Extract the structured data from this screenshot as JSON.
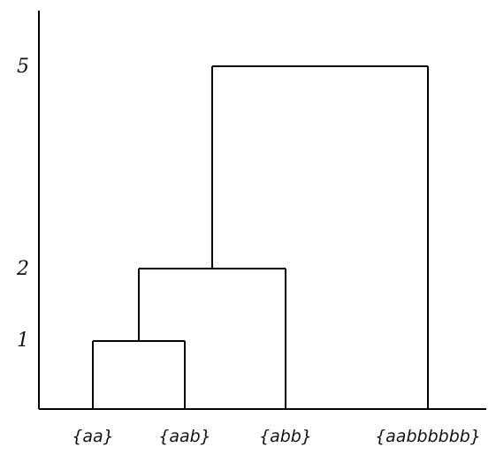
{
  "dendrogram": {
    "axis_ticks": [
      {
        "value": 5,
        "label": "5"
      },
      {
        "value": 2,
        "label": "2"
      },
      {
        "value": 1,
        "label": "1"
      }
    ],
    "leaves": [
      {
        "id": "aa",
        "label": "{aa}"
      },
      {
        "id": "aab",
        "label": "{aab}"
      },
      {
        "id": "abb",
        "label": "{abb}"
      },
      {
        "id": "aabbbbbb",
        "label": "{aabbbbbb}"
      }
    ],
    "merges": [
      {
        "id": "m1",
        "children": [
          "aa",
          "aab"
        ],
        "height": 1
      },
      {
        "id": "m2",
        "children": [
          "m1",
          "abb"
        ],
        "height": 2
      },
      {
        "id": "m3",
        "children": [
          "m2",
          "aabbbbbb"
        ],
        "height": 5
      }
    ],
    "line_color": "#000000"
  }
}
